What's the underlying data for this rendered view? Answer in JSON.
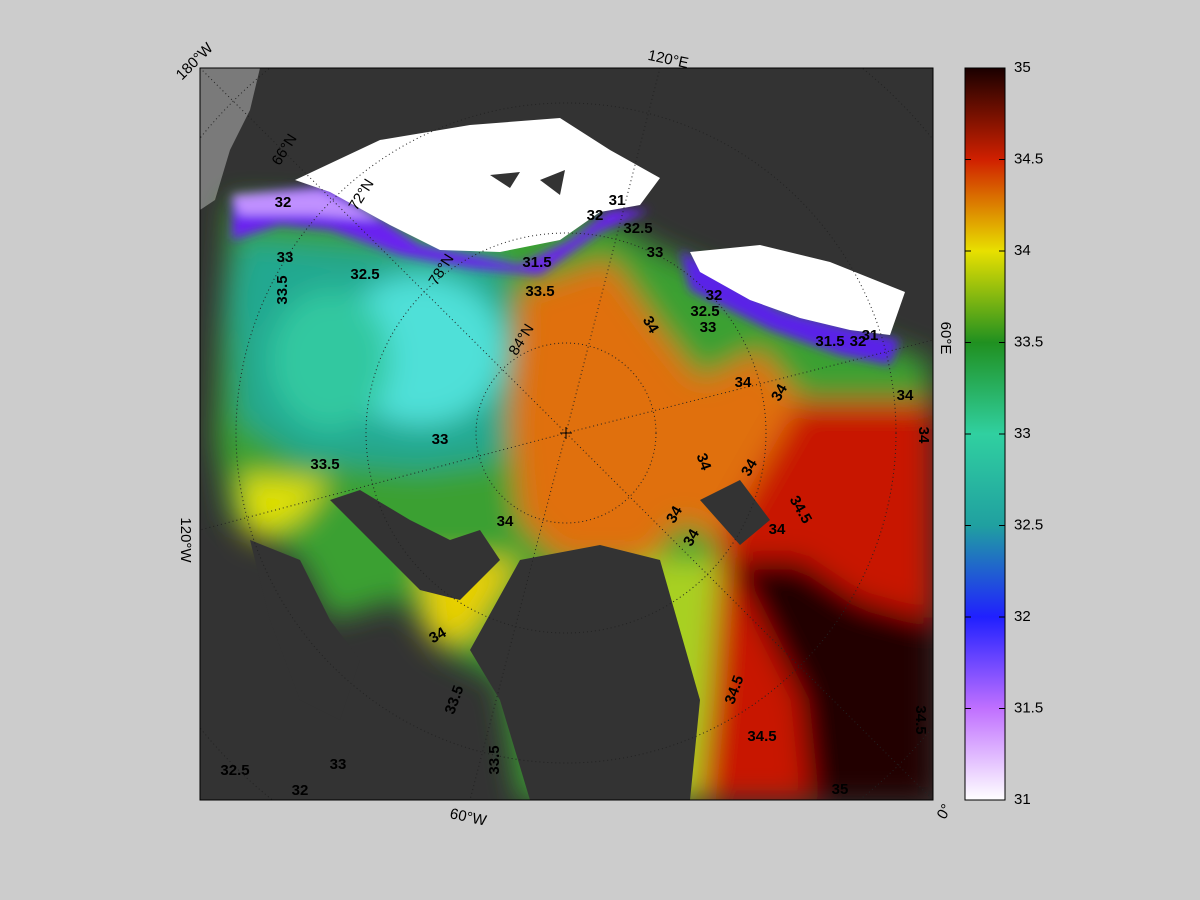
{
  "map": {
    "lon_labels": [
      "180°W",
      "120°E",
      "60°E",
      "0°",
      "60°W",
      "120°W"
    ],
    "lat_labels": [
      "66°N",
      "72°N",
      "78°N",
      "84°N"
    ],
    "contour_labels": [
      32,
      33,
      33.5,
      32.5,
      31.5,
      33.5,
      31,
      32,
      32.5,
      33,
      32,
      32.5,
      33,
      34,
      31.5,
      31,
      32,
      34,
      34,
      34,
      34,
      33,
      33.5,
      34,
      34,
      34,
      34.5,
      34,
      34,
      34,
      34,
      33.5,
      33.5,
      34.5,
      34.5,
      35,
      34.5,
      32.5,
      33,
      32
    ],
    "colorbar": {
      "lim": [
        31,
        35
      ],
      "ticks": [
        31,
        31.5,
        32,
        32.5,
        33,
        33.5,
        34,
        34.5,
        35
      ],
      "colors": [
        "#ffffff",
        "#c070ff",
        "#2020ff",
        "#20a0a0",
        "#30d0a0",
        "#209020",
        "#e8e000",
        "#d02000",
        "#1a0000"
      ]
    }
  }
}
